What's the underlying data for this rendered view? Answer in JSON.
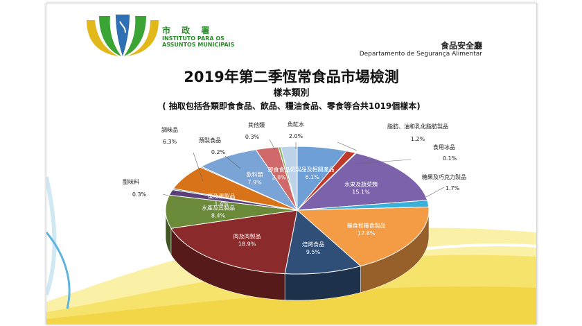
{
  "header": {
    "org_zh": "市 政 署",
    "org_pt": "INSTITUTO PARA OS ASSUNTOS MUNICIPAIS",
    "dept_zh": "食品安全廳",
    "dept_pt": "Departamento de Segurança Alimentar"
  },
  "colors": {
    "logo_green": "#3aa535",
    "logo_gold": "#e3b81a",
    "logo_blue": "#2f6fb4",
    "wave_yellow": "#f6e36b"
  },
  "chart_data": {
    "type": "pie",
    "title": "2019年第二季恆常食品市場檢測",
    "subtitle": "樣本類別",
    "note": "( 抽取包括各類即食食品、飲品、糧油食品、零食等合共1019個樣本)",
    "slices": [
      {
        "label": "奶製品及相關產品",
        "value": "6.1%",
        "pct": 6.1,
        "color": "#6e9fd6"
      },
      {
        "label": "脂肪、油和乳化脂肪製品",
        "value": "1.2%",
        "pct": 1.2,
        "color": "#c0392b"
      },
      {
        "label": "食用冰品",
        "value": "0.1%",
        "pct": 0.1,
        "color": "#4a9a3a"
      },
      {
        "label": "水果及蔬菜類",
        "value": "15.1%",
        "pct": 15.1,
        "color": "#7b62ab"
      },
      {
        "label": "糖果及巧克力製品",
        "value": "1.7%",
        "pct": 1.7,
        "color": "#3ab0d8"
      },
      {
        "label": "糧食和糧食製品",
        "value": "17.8%",
        "pct": 17.8,
        "color": "#f39b45"
      },
      {
        "label": "焙烤食品",
        "value": "9.5%",
        "pct": 9.5,
        "color": "#2f4f78"
      },
      {
        "label": "肉及肉製品",
        "value": "18.9%",
        "pct": 18.9,
        "color": "#8b2a2a"
      },
      {
        "label": "水產及其製品",
        "value": "8.4%",
        "pct": 8.4,
        "color": "#6b8a3a"
      },
      {
        "label": "蛋及蛋製品",
        "value": "1.4%",
        "pct": 1.4,
        "color": "#5a3f7a"
      },
      {
        "label": "甜味料",
        "value": "0.3%",
        "pct": 0.3,
        "color": "#3a8aa0"
      },
      {
        "label": "調味品",
        "value": "6.3%",
        "pct": 6.3,
        "color": "#d9731a"
      },
      {
        "label": "預製食品",
        "value": "0.2%",
        "pct": 0.2,
        "color": "#4a6aa8"
      },
      {
        "label": "飲料類",
        "value": "7.9%",
        "pct": 7.9,
        "color": "#7aa3d6"
      },
      {
        "label": "即食食品",
        "value": "2.8%",
        "pct": 2.8,
        "color": "#d06a6a"
      },
      {
        "label": "其他類",
        "value": "0.3%",
        "pct": 0.3,
        "color": "#8fb16a"
      },
      {
        "label": "魚缸水",
        "value": "2.0%",
        "pct": 2.0,
        "color": "#bcd3ea"
      }
    ]
  }
}
